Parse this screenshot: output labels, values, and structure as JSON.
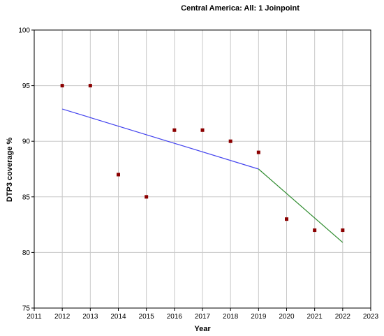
{
  "chart_data": {
    "type": "scatter",
    "title": "Central America: All: 1 Joinpoint",
    "xlabel": "Year",
    "ylabel": "DTP3 coverage %",
    "xlim": [
      2011,
      2023
    ],
    "ylim": [
      75,
      100
    ],
    "x_ticks": [
      2011,
      2012,
      2013,
      2014,
      2015,
      2016,
      2017,
      2018,
      2019,
      2020,
      2021,
      2022,
      2023
    ],
    "y_ticks": [
      75,
      80,
      85,
      90,
      95,
      100
    ],
    "grid": true,
    "series": [
      {
        "kind": "observed",
        "color": "#8b0000",
        "marker": "square",
        "points": [
          {
            "x": 2012,
            "y": 95
          },
          {
            "x": 2013,
            "y": 95
          },
          {
            "x": 2014,
            "y": 87
          },
          {
            "x": 2015,
            "y": 85
          },
          {
            "x": 2016,
            "y": 91
          },
          {
            "x": 2017,
            "y": 91
          },
          {
            "x": 2018,
            "y": 90
          },
          {
            "x": 2019,
            "y": 89
          },
          {
            "x": 2020,
            "y": 83
          },
          {
            "x": 2021,
            "y": 82
          },
          {
            "x": 2022,
            "y": 82
          }
        ]
      },
      {
        "kind": "fitted-segment-1",
        "color": "#4444ee",
        "points": [
          {
            "x": 2012,
            "y": 92.9
          },
          {
            "x": 2019,
            "y": 87.5
          }
        ]
      },
      {
        "kind": "fitted-segment-2",
        "color": "#2e8b2e",
        "points": [
          {
            "x": 2019,
            "y": 87.5
          },
          {
            "x": 2022,
            "y": 80.9
          }
        ]
      }
    ]
  }
}
